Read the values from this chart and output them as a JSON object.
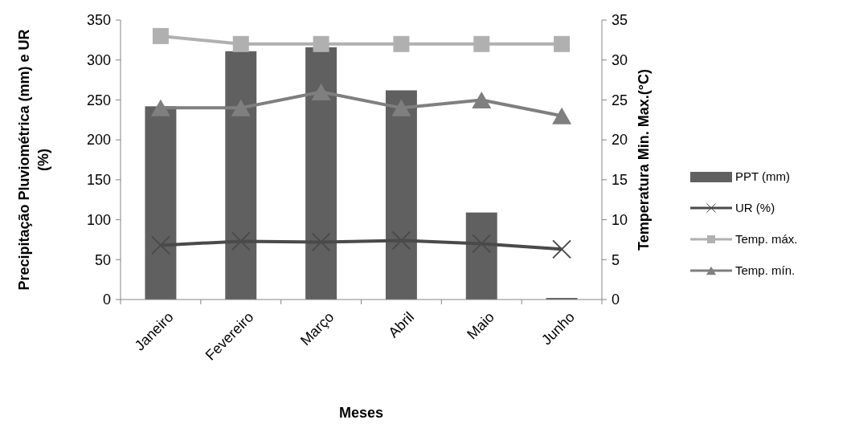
{
  "chart_data": {
    "type": "bar",
    "categories": [
      "Janeiro",
      "Fevereiro",
      "Março",
      "Abril",
      "Maio",
      "Junho"
    ],
    "xlabel": "Meses",
    "ylabel": "Precipitação Pluviométrica  (mm) e UR (%)",
    "y2label": "Temperatura Min. Max.(°C)",
    "ylim": [
      0,
      350
    ],
    "yticks": [
      0,
      50,
      100,
      150,
      200,
      250,
      300,
      350
    ],
    "y2lim": [
      0,
      35
    ],
    "y2ticks": [
      0,
      5,
      10,
      15,
      20,
      25,
      30,
      35
    ],
    "legend": "right",
    "grid": false,
    "series": [
      {
        "name": "PPT (mm)",
        "color": "#606060",
        "values": [
          242,
          311,
          316,
          262,
          109,
          2
        ]
      },
      {
        "name": "UR (%)",
        "type": "line",
        "marker": "cross",
        "color": "#4a4a4a",
        "values": [
          68,
          73,
          72,
          74,
          70,
          63
        ]
      },
      {
        "name": "Temp. máx.",
        "type": "line",
        "marker": "square",
        "axis": "y2",
        "color": "#b0b0b0",
        "values": [
          33,
          32,
          32,
          32,
          32,
          32
        ]
      },
      {
        "name": "Temp. mín.",
        "type": "line",
        "marker": "triangle",
        "axis": "y2",
        "color": "#7f7f7f",
        "values": [
          24,
          24,
          26,
          24,
          25,
          23
        ]
      }
    ]
  }
}
